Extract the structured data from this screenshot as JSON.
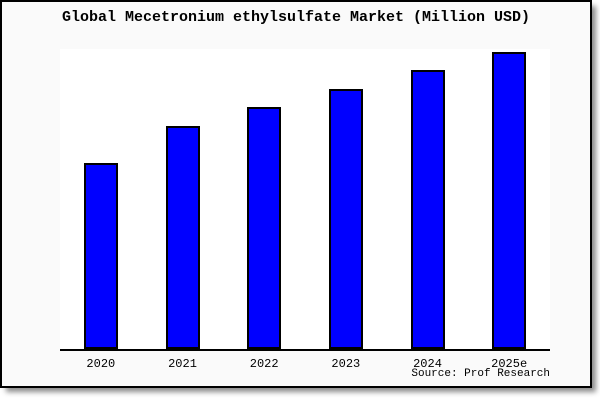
{
  "chart_data": {
    "type": "bar",
    "title": "Global Mecetronium ethylsulfate Market (Million USD)",
    "categories": [
      "2020",
      "2021",
      "2022",
      "2023",
      "2024",
      "2025e"
    ],
    "values": [
      62.6,
      75.1,
      81.5,
      87.5,
      93.9,
      100.0
    ],
    "values_note": "relative bar heights, max bar = 100; chart displays no numeric y-axis",
    "xlabel": "",
    "ylabel": "",
    "ylim": [
      0,
      101
    ],
    "grid": false,
    "legend": false,
    "source": "Source: Prof Research",
    "colors": {
      "bar_fill": "#0000FF",
      "bar_border": "#000000",
      "axis": "#000000",
      "plot_background": "#FFFFFF",
      "outer_background": "#FAFAFA",
      "frame_border": "#000000"
    }
  }
}
